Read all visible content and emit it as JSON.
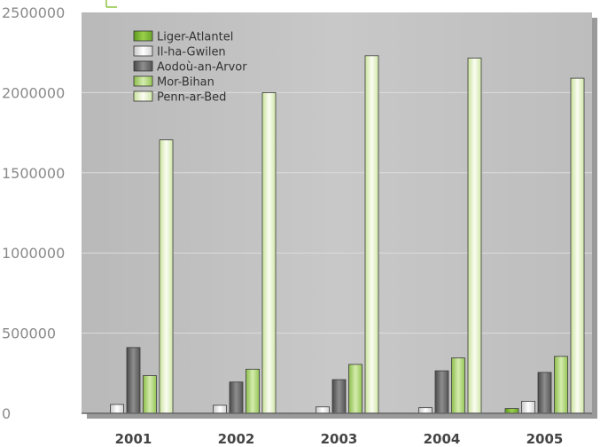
{
  "chart_data": {
    "type": "bar",
    "title": "",
    "xlabel": "",
    "ylabel": "",
    "categories": [
      "2001",
      "2002",
      "2003",
      "2004",
      "2005"
    ],
    "ylim": [
      0,
      2500000
    ],
    "yticks": [
      "0",
      "500000",
      "1000000",
      "1500000",
      "2000000",
      "2500000"
    ],
    "grid": true,
    "legend_position": "top-left",
    "series": [
      {
        "name": "Liger-Atlantel",
        "values": [
          null,
          null,
          null,
          null,
          30000
        ],
        "color": "#8ec63f",
        "style": "green-dark"
      },
      {
        "name": "Il-ha-Gwilen",
        "values": [
          55000,
          50000,
          40000,
          35000,
          75000
        ],
        "color": "#e6e6e6",
        "style": "white"
      },
      {
        "name": "Aodoù-an-Arvor",
        "values": [
          410000,
          195000,
          210000,
          265000,
          255000
        ],
        "color": "#777777",
        "style": "gray"
      },
      {
        "name": "Mor-Bihan",
        "values": [
          235000,
          275000,
          305000,
          345000,
          355000
        ],
        "color": "#b9dc83",
        "style": "green-mid"
      },
      {
        "name": "Penn-ar-Bed",
        "values": [
          1705000,
          2000000,
          2230000,
          2215000,
          2090000
        ],
        "color": "#eef6d6",
        "style": "green-light"
      }
    ]
  }
}
